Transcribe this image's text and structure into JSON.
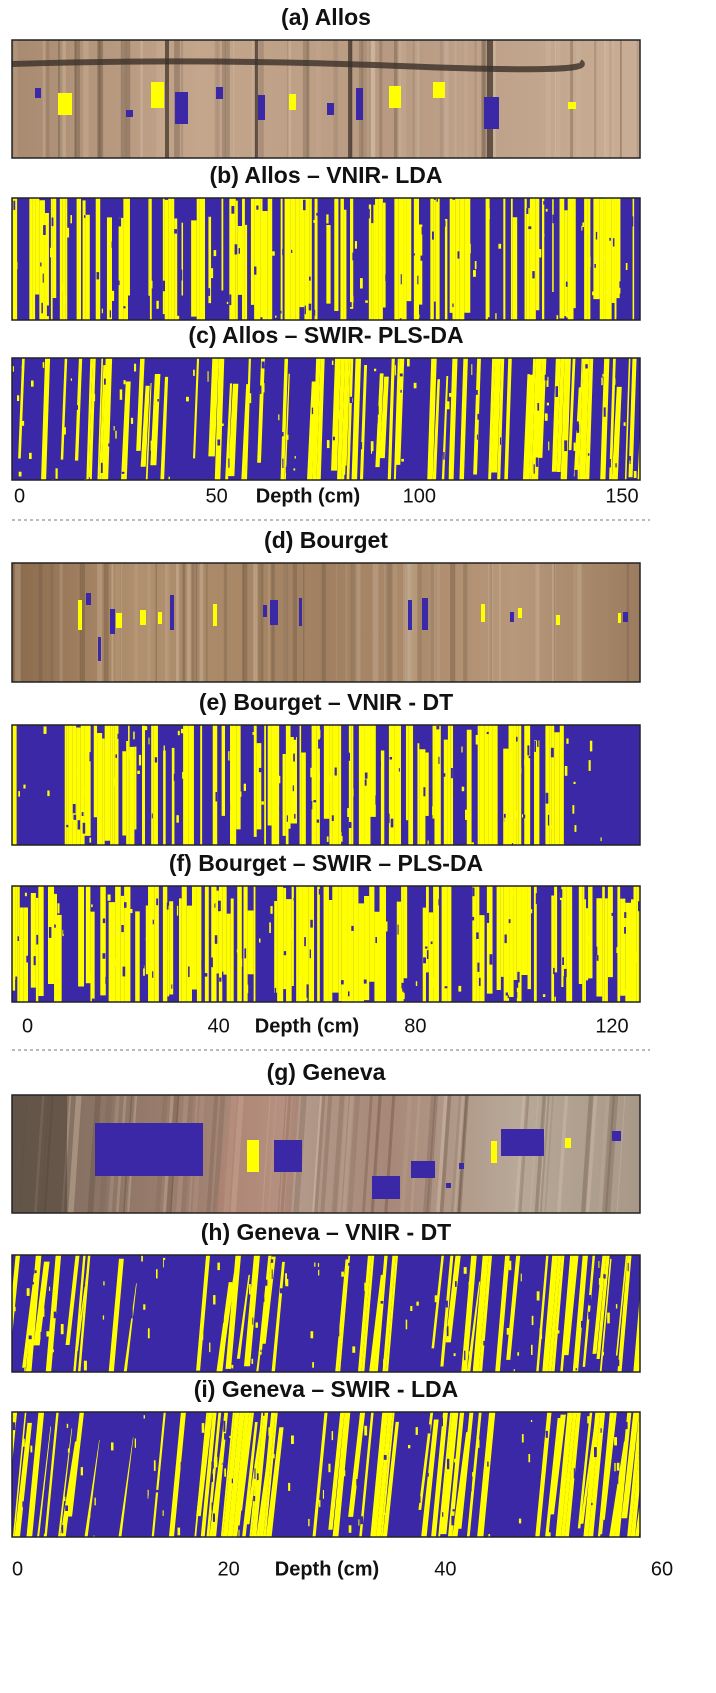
{
  "groups": [
    {
      "panels": [
        {
          "title": "(a) Allos"
        },
        {
          "title": "(b) Allos – VNIR- LDA"
        },
        {
          "title": "(c) Allos – SWIR- PLS-DA"
        }
      ],
      "axis": {
        "ticks": [
          0,
          50,
          100,
          150
        ],
        "label": "Depth (cm)"
      }
    },
    {
      "panels": [
        {
          "title": "(d) Bourget"
        },
        {
          "title": "(e) Bourget – VNIR - DT"
        },
        {
          "title": "(f) Bourget – SWIR – PLS-DA"
        }
      ],
      "axis": {
        "ticks": [
          0,
          40,
          80,
          120
        ],
        "label": "Depth (cm)"
      }
    },
    {
      "panels": [
        {
          "title": "(g) Geneva"
        },
        {
          "title": "(h) Geneva – VNIR - DT"
        },
        {
          "title": "(i) Geneva – SWIR - LDA"
        }
      ],
      "axis": {
        "ticks": [
          0,
          20,
          40,
          60
        ],
        "label": "Depth (cm)"
      }
    }
  ]
}
